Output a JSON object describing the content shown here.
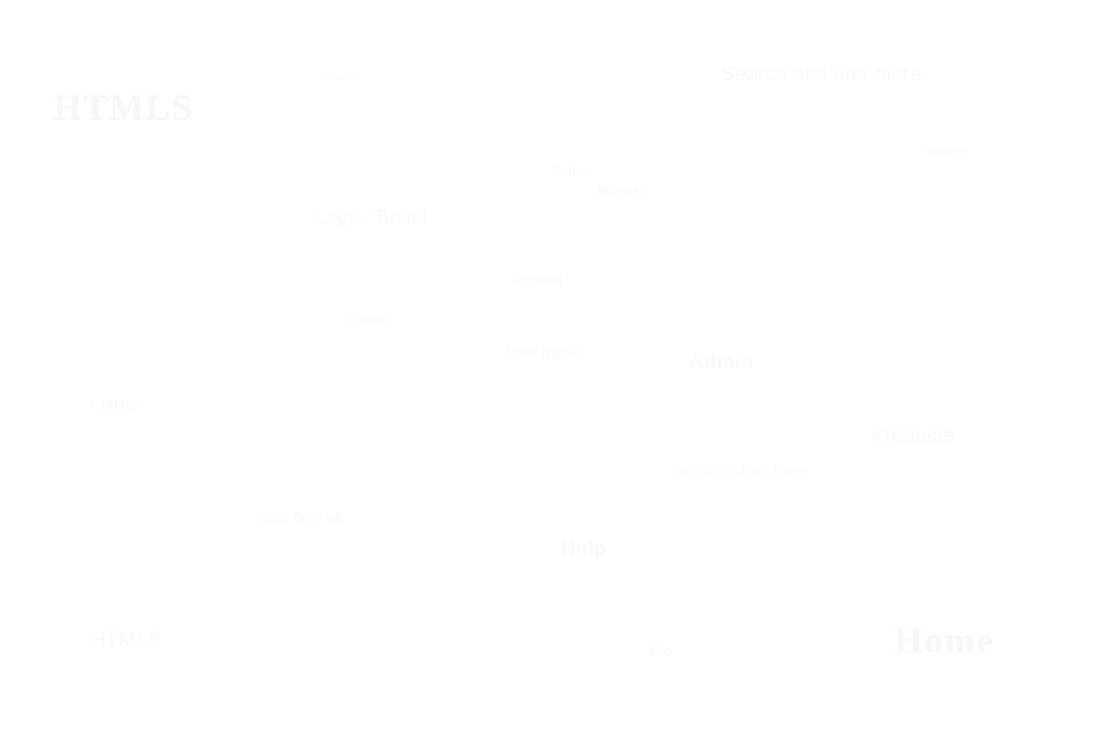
{
  "watermarks": [
    {
      "id": "wm-01",
      "text": "HTMLS"
    },
    {
      "id": "wm-02",
      "text": "Search and find more"
    },
    {
      "id": "wm-03",
      "text": "Close"
    },
    {
      "id": "wm-04",
      "text": "Logo / Brand"
    },
    {
      "id": "wm-05",
      "text": "Folder"
    },
    {
      "id": "wm-06",
      "text": "Report"
    },
    {
      "id": "wm-07",
      "text": "Settings"
    },
    {
      "id": "wm-08",
      "text": "Account"
    },
    {
      "id": "wm-09",
      "text": "Forum"
    },
    {
      "id": "wm-10",
      "text": "User Name"
    },
    {
      "id": "wm-11",
      "text": "Admin"
    },
    {
      "id": "wm-12",
      "text": "Update"
    },
    {
      "id": "wm-13",
      "text": "Submit and get more"
    },
    {
      "id": "wm-14",
      "text": "Products"
    },
    {
      "id": "wm-15",
      "text": "Sale 50% off"
    },
    {
      "id": "wm-16",
      "text": "Help"
    },
    {
      "id": "wm-17",
      "text": "HTMLS"
    },
    {
      "id": "wm-18",
      "text": "Home"
    },
    {
      "id": "wm-19",
      "text": "Info"
    }
  ]
}
